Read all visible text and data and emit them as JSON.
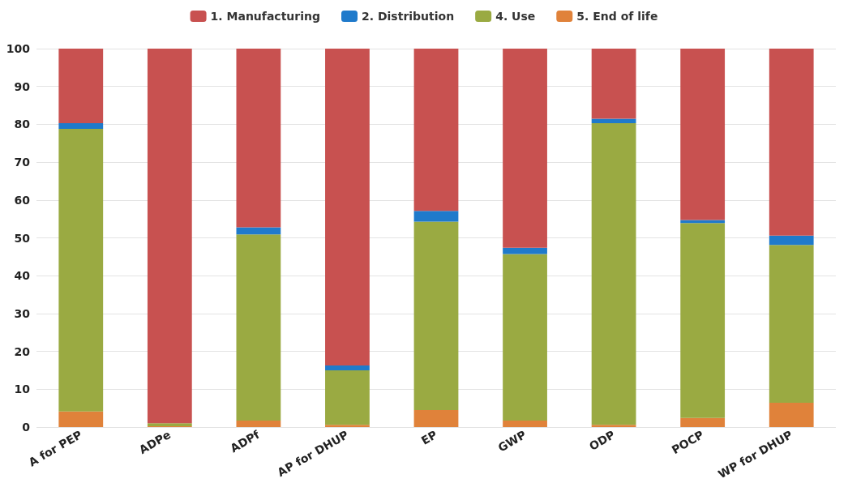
{
  "chart_data": {
    "type": "bar",
    "stacked": true,
    "categories": [
      "A for PEP",
      "ADPe",
      "ADPf",
      "AP for DHUP",
      "EP",
      "GWP",
      "ODP",
      "POCP",
      "WP for DHUP"
    ],
    "series": [
      {
        "name": "5. End of life",
        "color": "#e0823a",
        "values": [
          4.1,
          0.2,
          1.7,
          0.6,
          4.5,
          1.7,
          0.6,
          2.4,
          6.4
        ]
      },
      {
        "name": "4. Use",
        "color": "#9aaa42",
        "values": [
          74.7,
          0.8,
          49.2,
          14.4,
          49.8,
          44.0,
          79.7,
          51.5,
          41.7
        ]
      },
      {
        "name": "2. Distribution",
        "color": "#1f7acb",
        "values": [
          1.5,
          null,
          1.9,
          1.3,
          2.8,
          1.7,
          1.2,
          0.8,
          2.5
        ]
      },
      {
        "name": "1. Manufacturing",
        "color": "#c85150",
        "values": [
          19.7,
          99.0,
          47.2,
          83.7,
          42.9,
          52.6,
          18.5,
          45.3,
          49.4
        ]
      }
    ],
    "ylim": [
      0,
      100
    ],
    "yticks": [
      0,
      10,
      20,
      30,
      40,
      50,
      60,
      70,
      80,
      90,
      100
    ],
    "grid": "y",
    "legend": "top"
  }
}
